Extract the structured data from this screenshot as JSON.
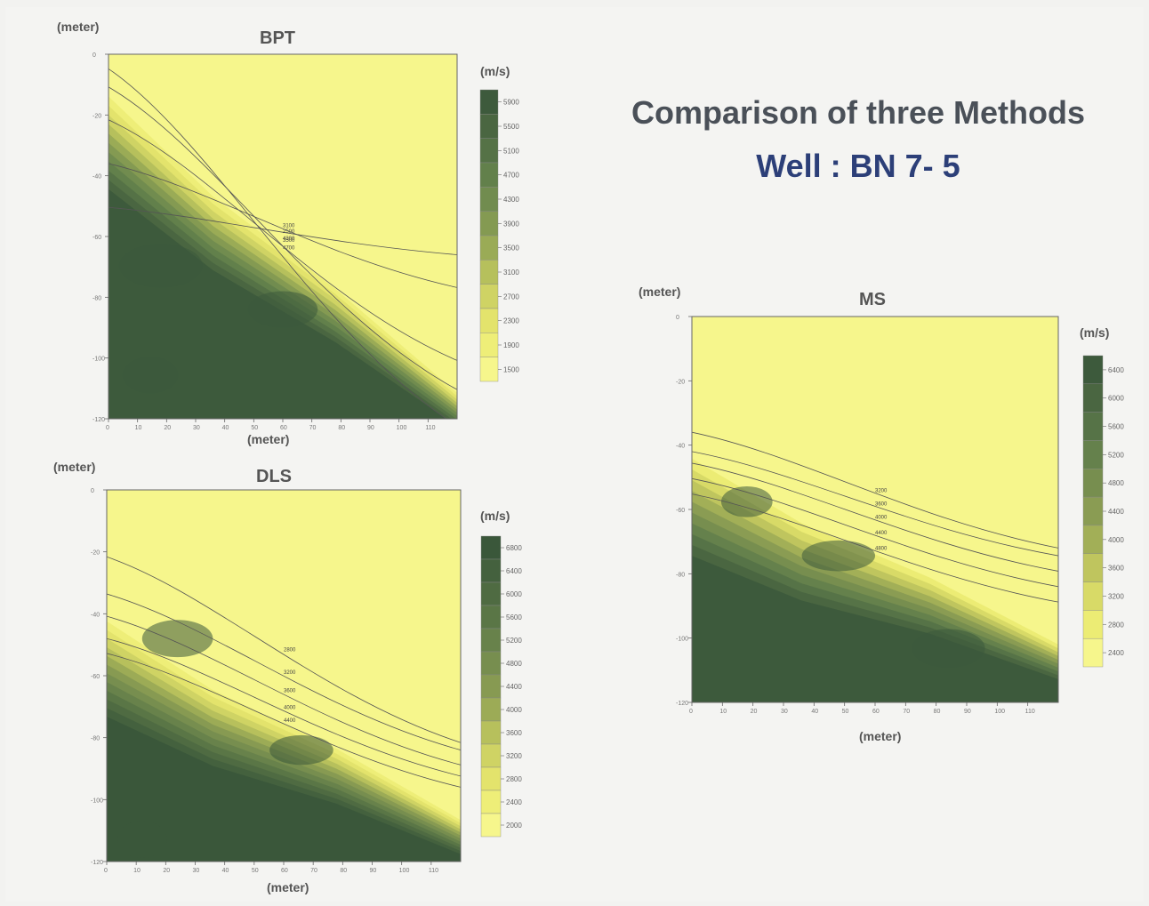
{
  "title": "Comparison of three Methods",
  "subtitle": "Well : BN 7- 5",
  "chart_data": [
    {
      "type": "heatmap",
      "title": "BPT",
      "xlabel": "(meter)",
      "ylabel": "(meter)",
      "colorbar_unit": "(m/s)",
      "xlim": [
        0,
        120
      ],
      "ylim": [
        -120,
        0
      ],
      "x_ticks": [
        "0",
        "10",
        "20",
        "30",
        "40",
        "50",
        "60",
        "70",
        "80",
        "90",
        "100",
        "110"
      ],
      "y_ticks": [
        "0",
        "-20",
        "-40",
        "-60",
        "-80",
        "-100",
        "-120"
      ],
      "colorbar_levels": [
        "5900",
        "5500",
        "5100",
        "4700",
        "4300",
        "3900",
        "3500",
        "3100",
        "2700",
        "2300",
        "1900",
        "1500"
      ],
      "colors": [
        "#3d5a3c",
        "#4a6641",
        "#557246",
        "#62804b",
        "#718c4f",
        "#849a52",
        "#9aab56",
        "#b6c05c",
        "#cfd364",
        "#e3e36c",
        "#eeee78",
        "#f6f68c"
      ],
      "contour_labels": [
        "2500",
        "3100",
        "3500",
        "4300",
        "4700"
      ]
    },
    {
      "type": "heatmap",
      "title": "DLS",
      "xlabel": "(meter)",
      "ylabel": "(meter)",
      "colorbar_unit": "(m/s)",
      "xlim": [
        0,
        120
      ],
      "ylim": [
        -120,
        0
      ],
      "x_ticks": [
        "0",
        "10",
        "20",
        "30",
        "40",
        "50",
        "60",
        "70",
        "80",
        "90",
        "100",
        "110"
      ],
      "y_ticks": [
        "0",
        "-20",
        "-40",
        "-60",
        "-80",
        "-100",
        "-120"
      ],
      "colorbar_levels": [
        "6800",
        "6400",
        "6000",
        "5600",
        "5200",
        "4800",
        "4400",
        "4000",
        "3600",
        "3200",
        "2800",
        "2400",
        "2000"
      ],
      "colors": [
        "#3a573a",
        "#44613e",
        "#4f6b42",
        "#5a7646",
        "#68824b",
        "#778e4f",
        "#879a52",
        "#9cab56",
        "#b7c05c",
        "#cfd364",
        "#e3e36c",
        "#eeee78",
        "#f6f68c"
      ],
      "contour_labels": [
        "2800",
        "3200",
        "3600",
        "4000",
        "4400",
        "5200"
      ]
    },
    {
      "type": "heatmap",
      "title": "MS",
      "xlabel": "(meter)",
      "ylabel": "(meter)",
      "colorbar_unit": "(m/s)",
      "xlim": [
        0,
        120
      ],
      "ylim": [
        -120,
        0
      ],
      "x_ticks": [
        "0",
        "10",
        "20",
        "30",
        "40",
        "50",
        "60",
        "70",
        "80",
        "90",
        "100",
        "110"
      ],
      "y_ticks": [
        "0",
        "-20",
        "-40",
        "-60",
        "-80",
        "-100",
        "-120"
      ],
      "colorbar_levels": [
        "6400",
        "6000",
        "5600",
        "5200",
        "4800",
        "4400",
        "4000",
        "3600",
        "3200",
        "2800",
        "2400"
      ],
      "colors": [
        "#3d5a3c",
        "#4a6641",
        "#567347",
        "#65814c",
        "#778e4f",
        "#8a9c53",
        "#a2af57",
        "#bfc55e",
        "#d8da67",
        "#ecec74",
        "#f6f68c"
      ],
      "contour_labels": [
        "3200",
        "3600",
        "4000",
        "4400",
        "4800"
      ]
    }
  ]
}
